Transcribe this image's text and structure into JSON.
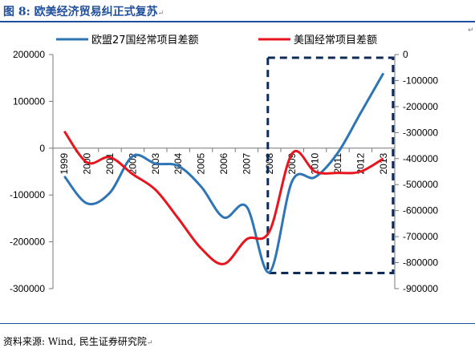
{
  "caption": {
    "text": "图 8: 欧美经济贸易纠正式复苏",
    "mark": "↵"
  },
  "source": {
    "text": "资料来源: Wind, 民生证券研究院",
    "mark": "↵"
  },
  "paragraph_mark": "↵",
  "chart_data": {
    "type": "line",
    "title": "",
    "x": [
      "1999",
      "2000",
      "2001",
      "2002",
      "2003",
      "2004",
      "2005",
      "2006",
      "2007",
      "2008",
      "2009",
      "2010",
      "2011",
      "2012",
      "2013"
    ],
    "xlabel": "",
    "series": [
      {
        "name": "欧盟27国经常项目差额",
        "axis": "left",
        "color": "#2e75b6",
        "values": [
          -60000,
          -118000,
          -95000,
          -17000,
          -33000,
          -38000,
          -82000,
          -148000,
          -125000,
          -265000,
          -70000,
          -62000,
          -10000,
          75000,
          160000
        ]
      },
      {
        "name": "美国经常项目差额",
        "axis": "right",
        "color": "#e8141e",
        "values": [
          -295000,
          -415000,
          -395000,
          -460000,
          -520000,
          -630000,
          -745000,
          -805000,
          -710000,
          -680000,
          -380000,
          -450000,
          -455000,
          -450000,
          -400000
        ]
      }
    ],
    "y_left": {
      "min": -300000,
      "max": 200000,
      "ticks": [
        "200000",
        "100000",
        "0",
        "-100000",
        "-200000",
        "-300000"
      ]
    },
    "y_right": {
      "min": -900000,
      "max": 0,
      "ticks": [
        "0",
        "-100000",
        "-200000",
        "-300000",
        "-400000",
        "-500000",
        "-600000",
        "-700000",
        "-800000",
        "-900000"
      ]
    },
    "legend_position": "top",
    "highlight": {
      "from": "2008",
      "to": "2013",
      "style": "dashed-box",
      "color": "#0f2a56"
    },
    "grid": false
  }
}
